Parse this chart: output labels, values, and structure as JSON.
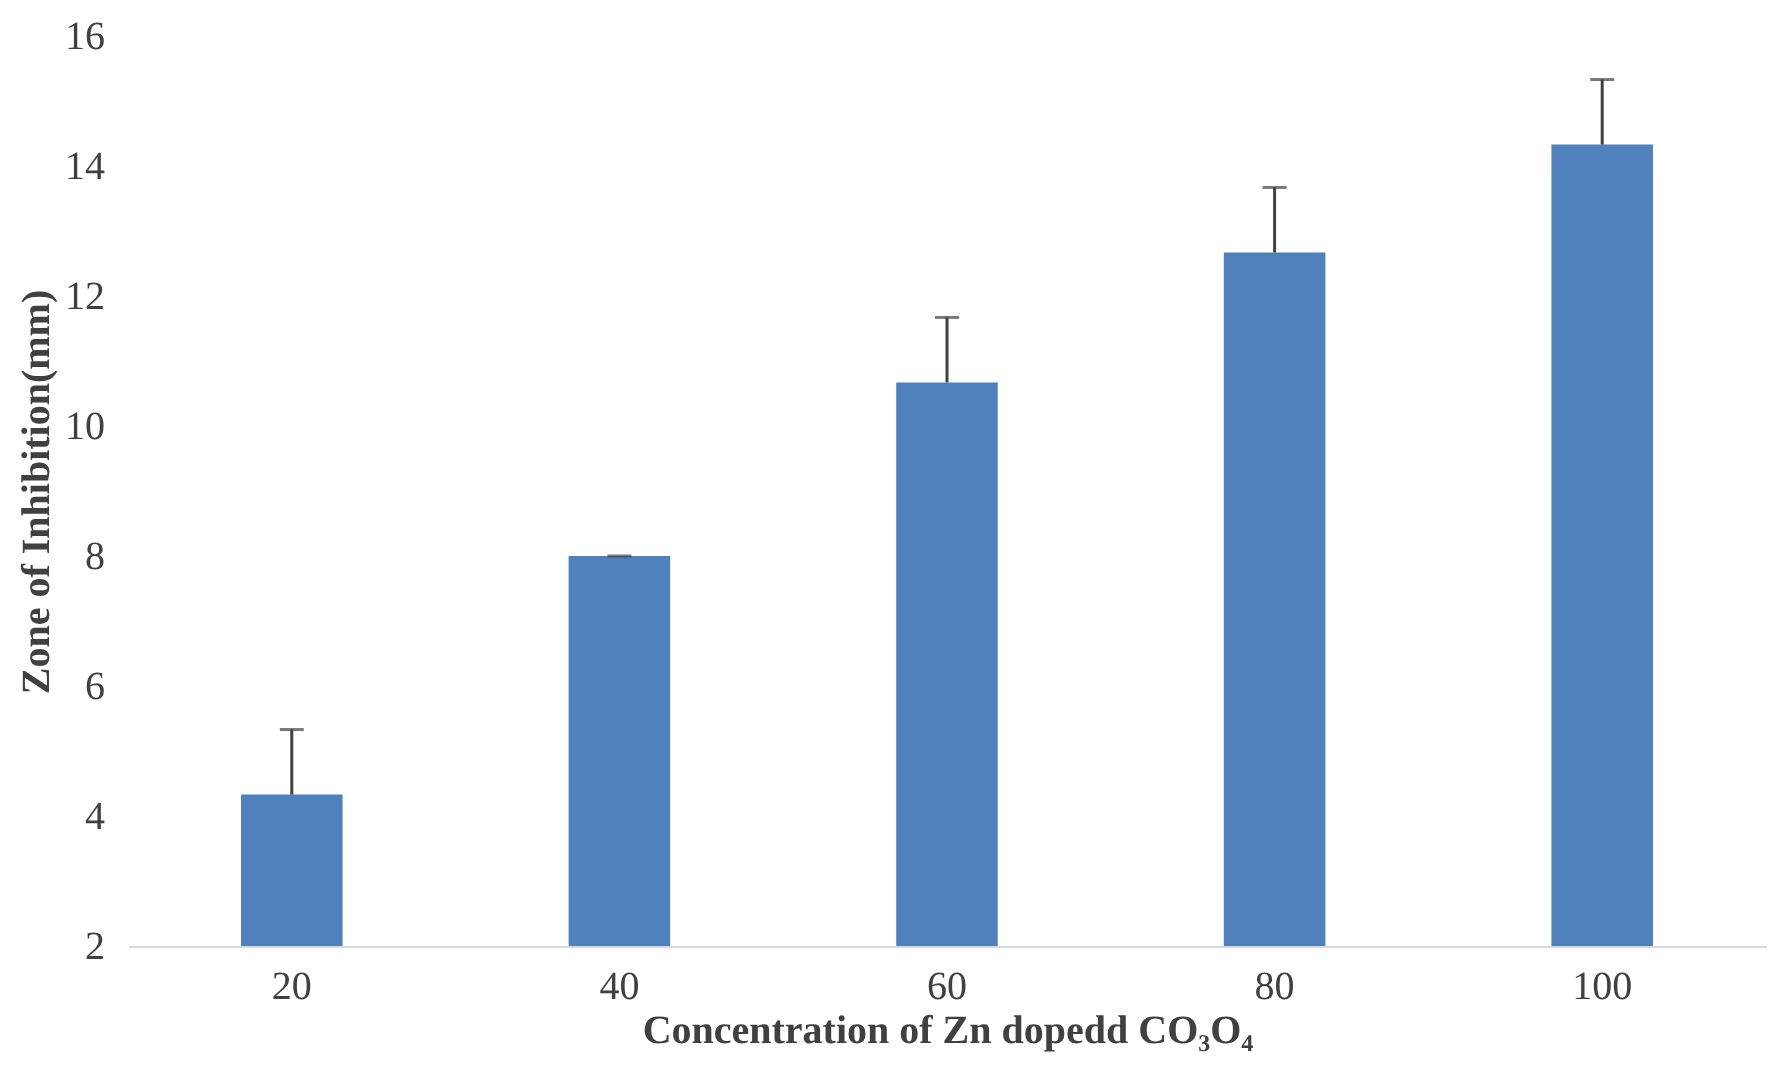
{
  "chart_data": {
    "type": "bar",
    "xlabel": "Concentration of Zn dopedd CO₃O₄",
    "ylabel": "Zone of Inhibition(mm)",
    "categories": [
      "20",
      "40",
      "60",
      "80",
      "100"
    ],
    "values": [
      4.33,
      8.0,
      10.67,
      12.67,
      14.33
    ],
    "errors": [
      [
        4.33,
        5.33
      ],
      [
        8.0,
        8.0
      ],
      [
        10.67,
        11.67
      ],
      [
        12.67,
        13.67
      ],
      [
        14.33,
        15.33
      ]
    ],
    "color": "#4f81bd",
    "ylim": [
      2,
      16
    ],
    "yticks": [
      2,
      4,
      6,
      8,
      10,
      12,
      14,
      16
    ],
    "grid": false
  }
}
